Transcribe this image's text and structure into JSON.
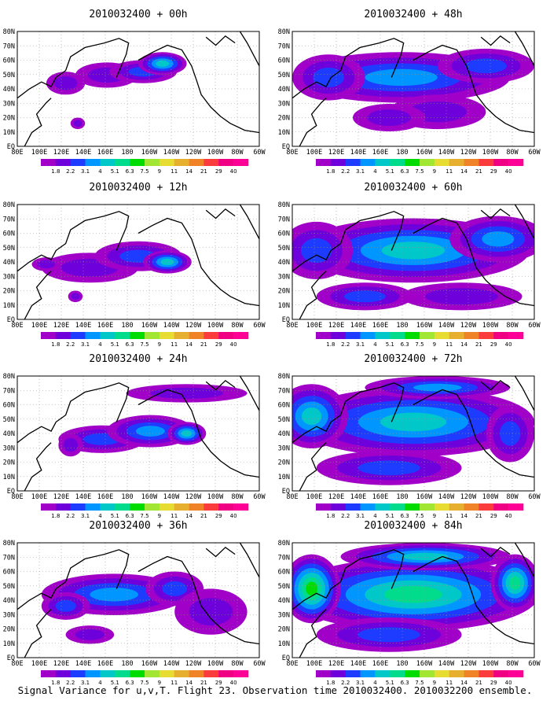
{
  "panels": [
    {
      "title": "2010032400 + 00h",
      "level": 0
    },
    {
      "title": "2010032400 + 48h",
      "level": 4
    },
    {
      "title": "2010032400 + 12h",
      "level": 1
    },
    {
      "title": "2010032400 + 60h",
      "level": 5
    },
    {
      "title": "2010032400 + 24h",
      "level": 2
    },
    {
      "title": "2010032400 + 72h",
      "level": 6
    },
    {
      "title": "2010032400 + 36h",
      "level": 3
    },
    {
      "title": "2010032400 + 84h",
      "level": 7
    }
  ],
  "lat_labels": [
    "80N",
    "70N",
    "60N",
    "50N",
    "40N",
    "30N",
    "20N",
    "10N",
    "EQ"
  ],
  "lon_labels": [
    "80E",
    "100E",
    "120E",
    "140E",
    "160E",
    "180",
    "160W",
    "140W",
    "120W",
    "100W",
    "80W",
    "60W"
  ],
  "colorbar": {
    "labels": [
      "1.8",
      "2.2",
      "3.1",
      "4",
      "5.1",
      "6.3",
      "7.5",
      "9",
      "11",
      "14",
      "21",
      "29",
      "40"
    ],
    "colors": [
      "#a000c8",
      "#6e00dc",
      "#1e3cff",
      "#0096ff",
      "#00c8c8",
      "#00dc8c",
      "#00dc00",
      "#a0e632",
      "#e6dc32",
      "#e6af2d",
      "#f08228",
      "#fa3c3c",
      "#f00082",
      "#ff0096"
    ]
  },
  "caption": "Signal Variance for u,v,T. Flight 23. Observation time 2010032400. 2010032200 ensemble."
}
